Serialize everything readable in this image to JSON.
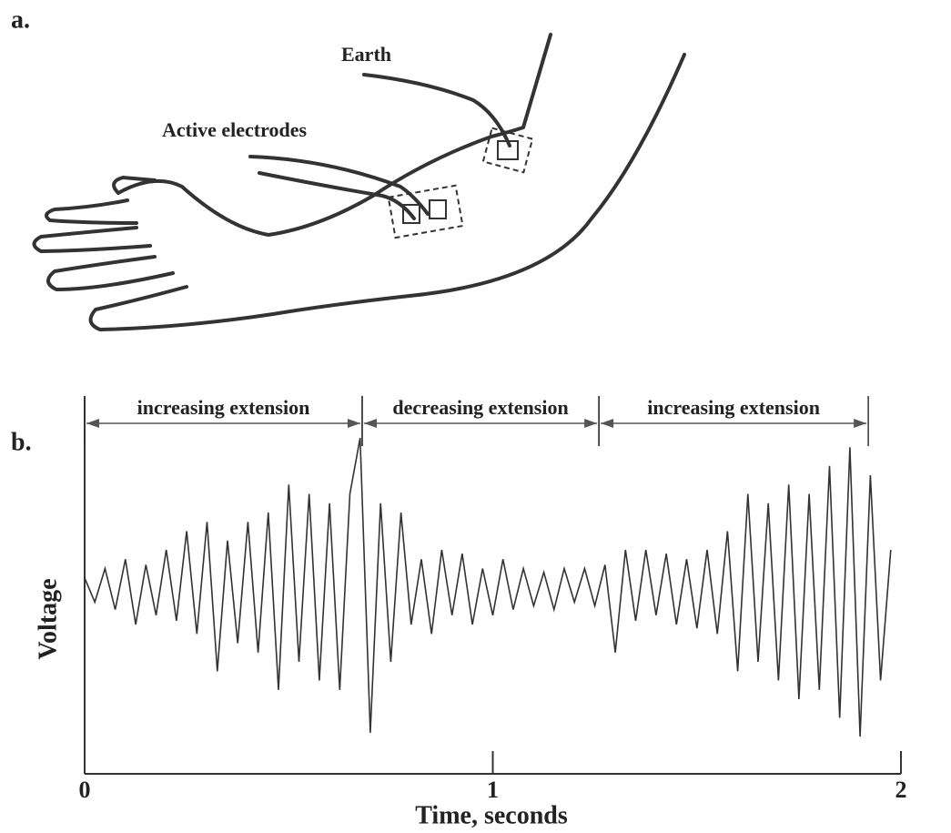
{
  "figure": {
    "panel_a": {
      "label": "a.",
      "earth_label": "Earth",
      "electrodes_label": "Active electrodes"
    },
    "panel_b": {
      "label": "b."
    }
  },
  "chart_data": {
    "type": "line",
    "x_label": "Time, seconds",
    "y_label": "Voltage",
    "color": "#333333",
    "xlim": [
      0,
      2
    ],
    "xticks": [
      0,
      1,
      2
    ],
    "ylim": [
      -1,
      1
    ],
    "annotations": [
      {
        "label": "increasing extension",
        "start": 0,
        "end": 0.68
      },
      {
        "label": "decreasing extension",
        "start": 0.68,
        "end": 1.26
      },
      {
        "label": "increasing extension",
        "start": 1.26,
        "end": 1.92
      }
    ],
    "x": [
      0,
      0.025,
      0.05,
      0.075,
      0.1,
      0.125,
      0.15,
      0.175,
      0.2,
      0.225,
      0.25,
      0.275,
      0.3,
      0.325,
      0.35,
      0.375,
      0.4,
      0.425,
      0.45,
      0.475,
      0.5,
      0.525,
      0.55,
      0.575,
      0.6,
      0.625,
      0.65,
      0.675,
      0.7,
      0.725,
      0.75,
      0.775,
      0.8,
      0.825,
      0.85,
      0.875,
      0.9,
      0.925,
      0.95,
      0.975,
      1.0,
      1.025,
      1.05,
      1.075,
      1.1,
      1.125,
      1.15,
      1.175,
      1.2,
      1.225,
      1.25,
      1.275,
      1.3,
      1.325,
      1.35,
      1.375,
      1.4,
      1.425,
      1.45,
      1.475,
      1.5,
      1.525,
      1.55,
      1.575,
      1.6,
      1.625,
      1.65,
      1.675,
      1.7,
      1.725,
      1.75,
      1.775,
      1.8,
      1.825,
      1.85,
      1.875,
      1.9,
      1.925,
      1.95,
      1.975
    ],
    "values": [
      0.05,
      -0.08,
      0.1,
      -0.12,
      0.15,
      -0.2,
      0.12,
      -0.15,
      0.2,
      -0.18,
      0.3,
      -0.25,
      0.35,
      -0.45,
      0.25,
      -0.3,
      0.35,
      -0.35,
      0.4,
      -0.55,
      0.55,
      -0.4,
      0.5,
      -0.5,
      0.45,
      -0.55,
      0.5,
      0.8,
      -0.78,
      0.45,
      -0.4,
      0.4,
      -0.2,
      0.15,
      -0.25,
      0.2,
      -0.15,
      0.18,
      -0.2,
      0.1,
      -0.15,
      0.15,
      -0.12,
      0.1,
      -0.1,
      0.08,
      -0.12,
      0.1,
      -0.08,
      0.1,
      -0.1,
      0.12,
      -0.35,
      0.2,
      -0.18,
      0.2,
      -0.15,
      0.18,
      -0.2,
      0.15,
      -0.22,
      0.2,
      -0.25,
      0.3,
      -0.45,
      0.5,
      -0.4,
      0.45,
      -0.5,
      0.55,
      -0.6,
      0.5,
      -0.55,
      0.65,
      -0.7,
      0.75,
      -0.8,
      0.6,
      -0.5,
      0.2
    ]
  }
}
